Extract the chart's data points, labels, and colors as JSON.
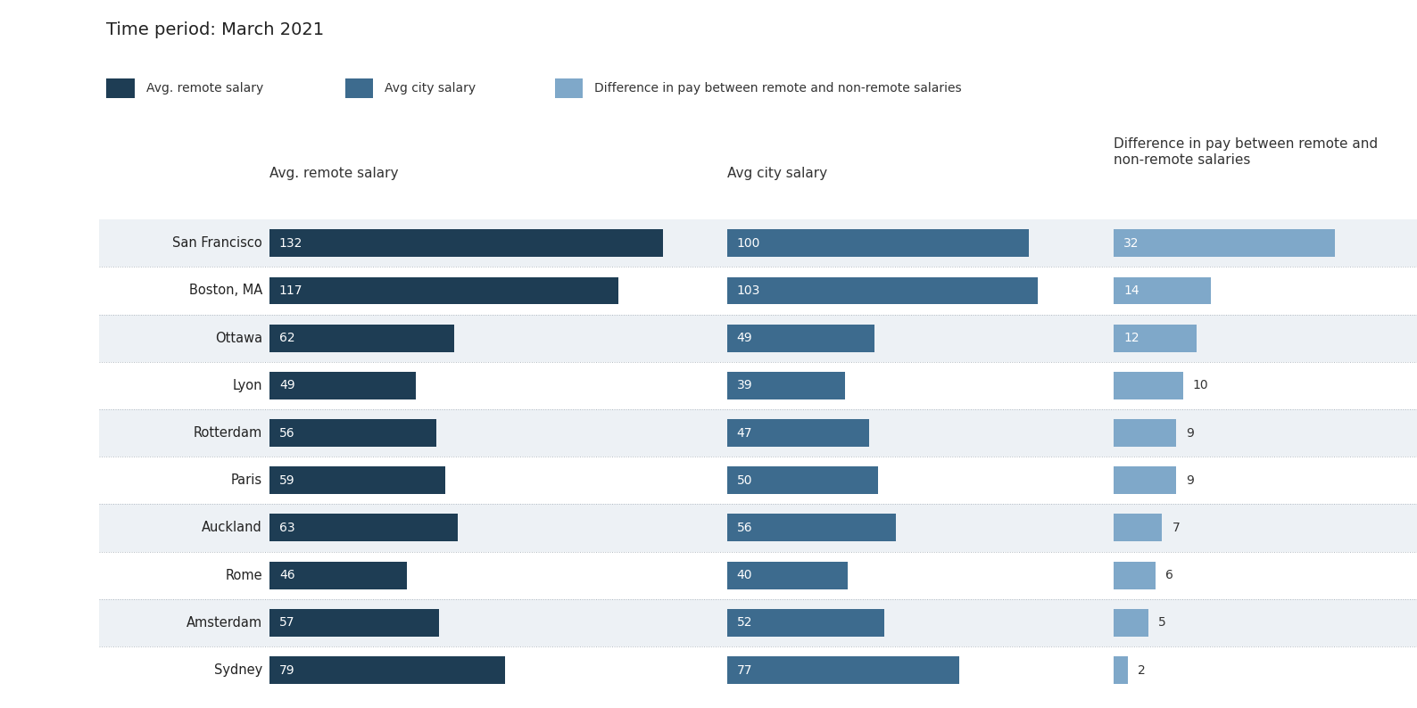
{
  "title": "Time period: March 2021",
  "cities": [
    "San Francisco",
    "Boston, MA",
    "Ottawa",
    "Lyon",
    "Rotterdam",
    "Paris",
    "Auckland",
    "Rome",
    "Amsterdam",
    "Sydney"
  ],
  "remote_salary": [
    132,
    117,
    62,
    49,
    56,
    59,
    63,
    46,
    57,
    79
  ],
  "city_salary": [
    100,
    103,
    49,
    39,
    47,
    50,
    56,
    40,
    52,
    77
  ],
  "difference": [
    32,
    14,
    12,
    10,
    9,
    9,
    7,
    6,
    5,
    2
  ],
  "color_remote": "#1e3d54",
  "color_city": "#3d6b8e",
  "color_diff": "#7fa8c9",
  "col1_header": "Avg. remote salary",
  "col2_header": "Avg city salary",
  "col3_header": "Difference in pay between remote and\nnon-remote salaries",
  "legend_labels": [
    "Avg. remote salary",
    "Avg city salary",
    "Difference in pay between remote and non-remote salaries"
  ],
  "row_bg_even": "#edf1f5",
  "row_bg_odd": "#ffffff",
  "max_remote": 140,
  "max_city": 115,
  "max_diff": 40
}
